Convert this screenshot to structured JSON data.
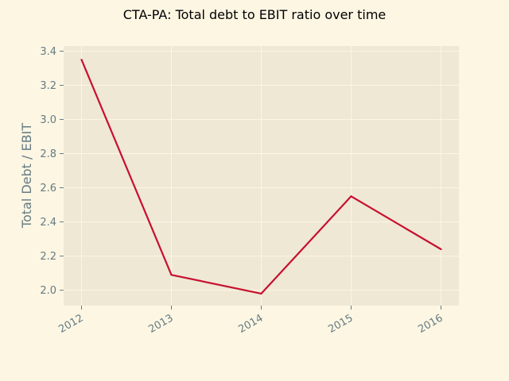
{
  "chart_data": {
    "type": "line",
    "title": "CTA-PA: Total debt to EBIT ratio over time",
    "xlabel": "",
    "ylabel": "Total Debt / EBIT",
    "x": [
      "2012",
      "2013",
      "2014",
      "2015",
      "2016"
    ],
    "series": [
      {
        "values": [
          3.35,
          2.09,
          1.98,
          2.55,
          2.24
        ]
      }
    ],
    "ylim": [
      1.91,
      3.43
    ],
    "yticks": [
      "2.0",
      "2.2",
      "2.4",
      "2.6",
      "2.8",
      "3.0",
      "3.2",
      "3.4"
    ],
    "grid": true,
    "legend": "none"
  },
  "colors": {
    "background": "#fdf6e3",
    "plot_area": "#eee8d5",
    "grid": "#fdf6e3",
    "line": "#c8102e",
    "tick_text": "#657b83"
  }
}
